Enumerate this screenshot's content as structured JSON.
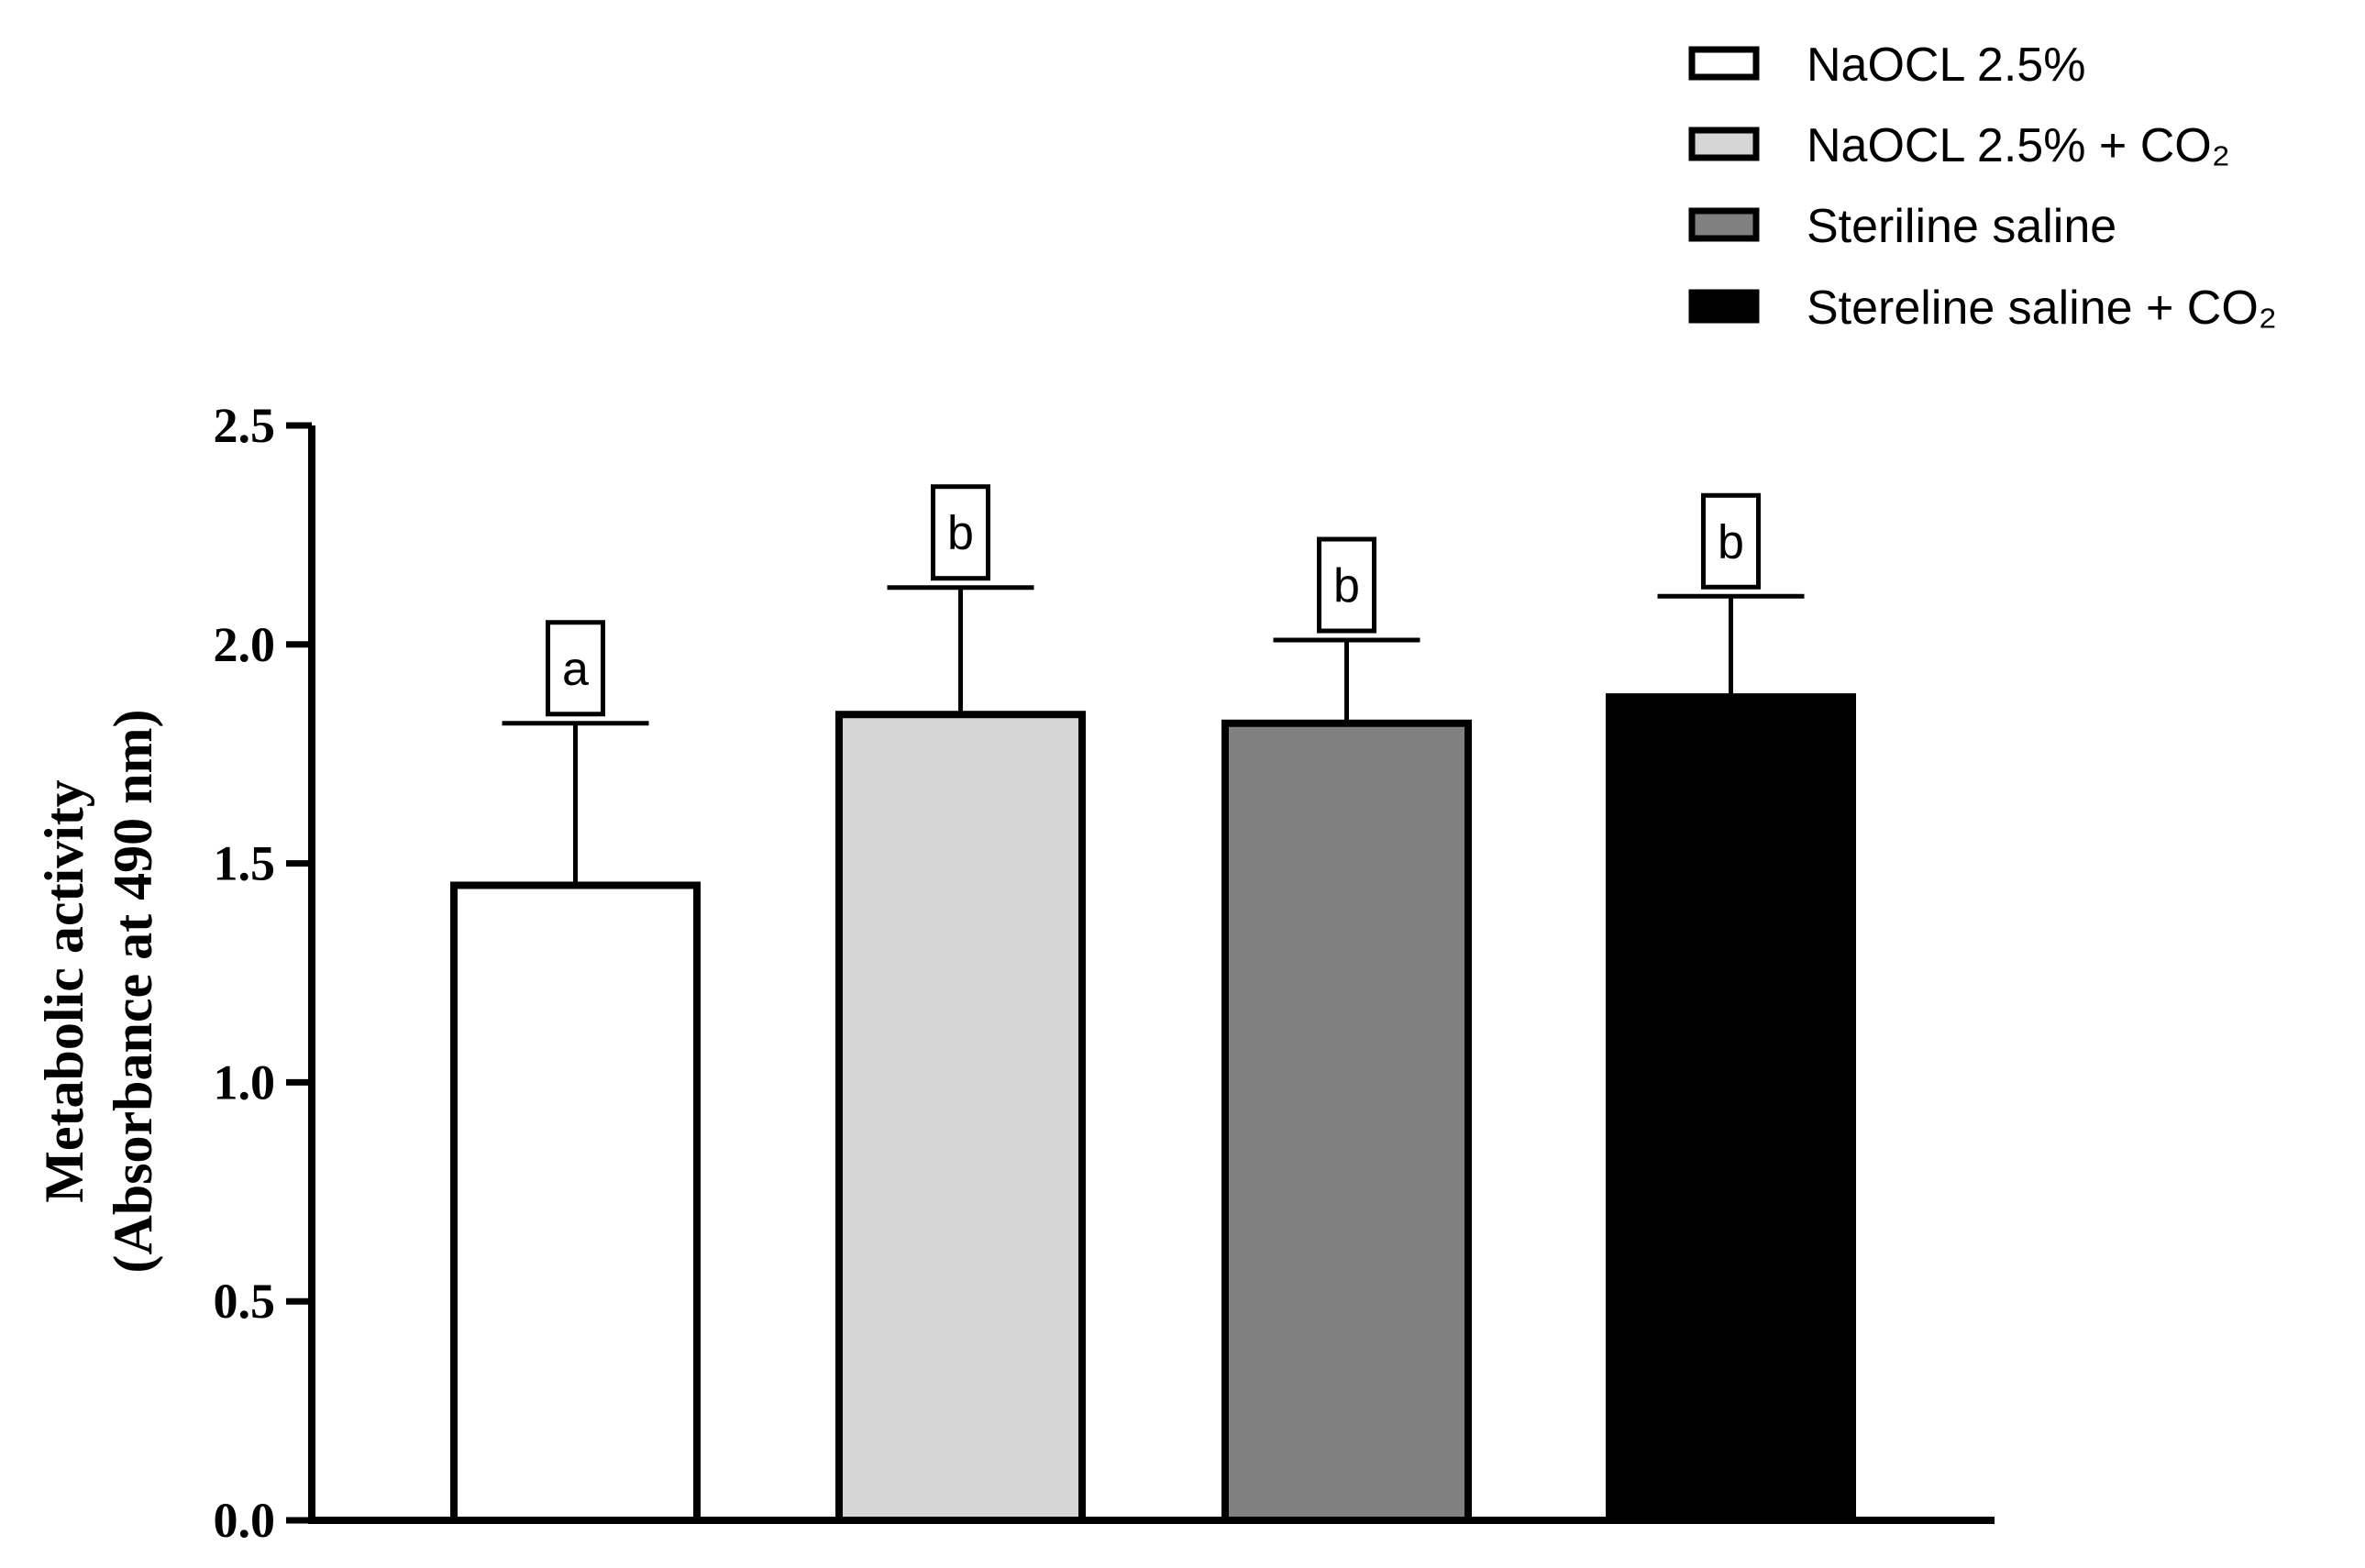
{
  "chart_data": {
    "type": "bar",
    "title": "",
    "xlabel": "",
    "ylabel_lines": [
      "Metabolic activity",
      "(Absorbance at 490 nm)"
    ],
    "ylim": [
      0,
      2.5
    ],
    "yticks": [
      0.0,
      0.5,
      1.0,
      1.5,
      2.0,
      2.5
    ],
    "ytick_labels": [
      "0.0",
      "0.5",
      "1.0",
      "1.5",
      "2.0",
      "2.5"
    ],
    "categories": [
      "NaOCL 2.5%",
      "NaOCL 2.5% + CO₂",
      "Steriline saline",
      "Stereline saline + CO₂"
    ],
    "values": [
      1.45,
      1.84,
      1.82,
      1.88
    ],
    "errors": [
      0.37,
      0.29,
      0.19,
      0.23
    ],
    "significance": [
      "a",
      "b",
      "b",
      "b"
    ],
    "colors": [
      "#ffffff",
      "#d6d6d6",
      "#808080",
      "#000000"
    ],
    "legend_position": "top-right",
    "grid": false
  }
}
